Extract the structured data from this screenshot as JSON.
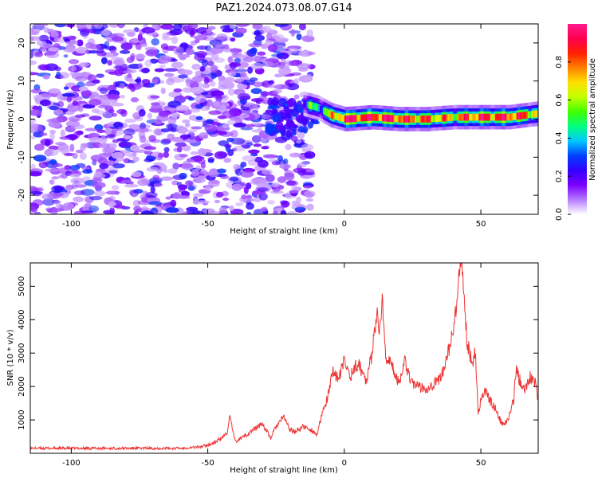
{
  "figure": {
    "title": "PAZ1.2024.073.08.07.G14"
  },
  "chart_data": [
    {
      "type": "heatmap",
      "title": "PAZ1.2024.073.08.07.G14",
      "xlabel": "Height of straight line (km)",
      "ylabel": "Frequency (Hz)",
      "xlim": [
        -115,
        71
      ],
      "ylim": [
        -25,
        25
      ],
      "xticks": [
        -100,
        -50,
        0,
        50
      ],
      "yticks": [
        -20,
        -10,
        0,
        10,
        20
      ],
      "colorbar": {
        "label": "Normalized spectral amplitude",
        "range": [
          0,
          1
        ],
        "ticks": [
          "0.0",
          "0.2",
          "0.4",
          "0.6",
          "0.8"
        ],
        "colormap": [
          "#ffffff",
          "#b57bff",
          "#7a00ff",
          "#3300ff",
          "#0040ff",
          "#00c8ff",
          "#00ff80",
          "#40ff00",
          "#c0ff00",
          "#ffe000",
          "#ff8000",
          "#ff2000",
          "#ff0050",
          "#ff1a8c"
        ]
      },
      "ridge": {
        "description": "strong narrowband component near 0 Hz",
        "x": [
          -15,
          -10,
          -5,
          0,
          10,
          20,
          30,
          40,
          50,
          60,
          71
        ],
        "frequency_hz": [
          4,
          3,
          1,
          0,
          0.5,
          0,
          0,
          0.5,
          0.5,
          0.5,
          1.5
        ],
        "amplitude": [
          0.35,
          0.45,
          0.6,
          0.9,
          0.9,
          0.85,
          0.75,
          0.7,
          0.85,
          0.85,
          0.7
        ]
      },
      "noise_region": {
        "x_range": [
          -115,
          -12
        ],
        "amplitude_range": [
          0.05,
          0.3
        ]
      }
    },
    {
      "type": "line",
      "xlabel": "Height of straight line (km)",
      "ylabel": "SNR (10 * v/v)",
      "xlim": [
        -115,
        71
      ],
      "ylim": [
        0,
        5700
      ],
      "xticks": [
        -100,
        -50,
        0,
        50
      ],
      "yticks": [
        1000,
        2000,
        3000,
        4000,
        5000
      ],
      "color": "#ee3333",
      "x": [
        -115,
        -100,
        -80,
        -60,
        -52,
        -48,
        -45,
        -43,
        -42,
        -40,
        -35,
        -30,
        -27,
        -25,
        -22,
        -20,
        -18,
        -15,
        -12,
        -10,
        -8,
        -6,
        -4,
        -2,
        0,
        2,
        5,
        8,
        10,
        11,
        12,
        13,
        14,
        15,
        16,
        18,
        20,
        22,
        24,
        26,
        30,
        35,
        38,
        40,
        41,
        42,
        43,
        44,
        45,
        47,
        48,
        49,
        50,
        52,
        53,
        55,
        57,
        58,
        60,
        62,
        63,
        64,
        65,
        66,
        68,
        70,
        71
      ],
      "values": [
        150,
        150,
        150,
        150,
        200,
        300,
        450,
        600,
        1100,
        350,
        600,
        900,
        450,
        800,
        1100,
        700,
        650,
        800,
        700,
        550,
        1200,
        1700,
        2500,
        2200,
        2800,
        2300,
        2700,
        2200,
        2900,
        3800,
        4100,
        3700,
        4600,
        3000,
        2800,
        2500,
        2100,
        2800,
        2300,
        2000,
        1950,
        2200,
        3000,
        3700,
        4300,
        5300,
        5600,
        4500,
        3300,
        2700,
        3100,
        1200,
        1600,
        1900,
        1600,
        1400,
        1000,
        850,
        1000,
        1600,
        2600,
        2200,
        2100,
        1900,
        2300,
        2100,
        1600
      ]
    }
  ]
}
